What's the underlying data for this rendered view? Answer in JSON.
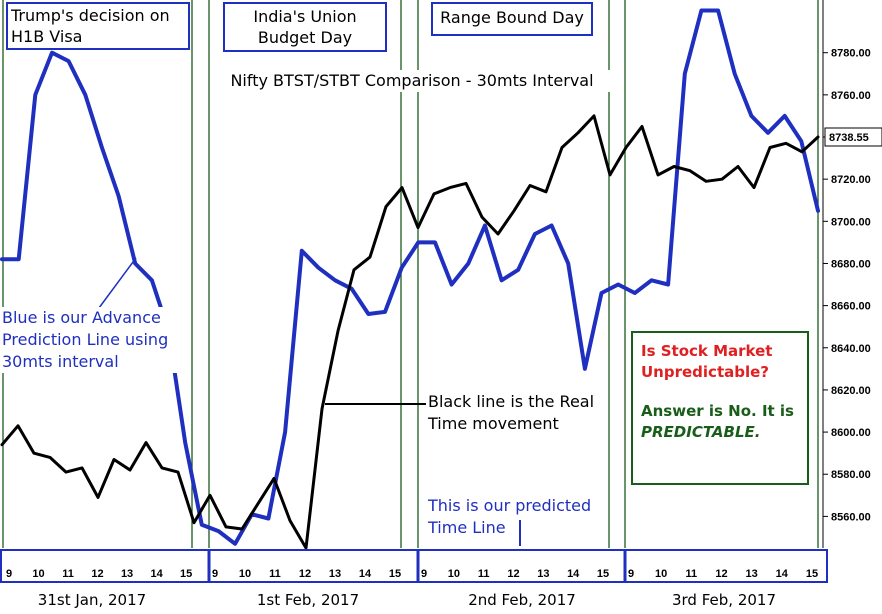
{
  "chart_data": {
    "type": "line",
    "title": "Nifty BTST/STBT Comparison - 30mts Interval",
    "ylim": [
      8545,
      8805
    ],
    "y_ticks": [
      8560,
      8580,
      8600,
      8620,
      8640,
      8660,
      8680,
      8700,
      8720,
      8740,
      8760,
      8780
    ],
    "last_price_label": "8738.55",
    "x_tick_labels": [
      "9",
      "10",
      "11",
      "12",
      "13",
      "14",
      "15",
      "9",
      "10",
      "11",
      "12",
      "13",
      "14",
      "15",
      "9",
      "10",
      "11",
      "12",
      "13",
      "14",
      "15",
      "9",
      "10",
      "11",
      "12",
      "13",
      "14",
      "15"
    ],
    "day_labels": [
      "31st Jan, 2017",
      "1st Feb, 2017",
      "2nd Feb, 2017",
      "3rd Feb, 2017"
    ],
    "series": [
      {
        "color": "#1f2fbf",
        "values": [
          8682,
          8682,
          8760,
          8780,
          8776,
          8760,
          8735,
          8712,
          8680,
          8672,
          8648,
          8595,
          8556,
          8553,
          8547,
          8561,
          8559,
          8600,
          8686,
          8678,
          8672,
          8668,
          8656,
          8657,
          8678,
          8690,
          8690,
          8670,
          8680,
          8698,
          8672,
          8677,
          8694,
          8698,
          8680,
          8630,
          8666,
          8670,
          8666,
          8672,
          8670,
          8770,
          8800,
          8800,
          8770,
          8750,
          8742,
          8750,
          8738,
          8705
        ]
      },
      {
        "color": "#000000",
        "values": [
          8594,
          8603,
          8590,
          8588,
          8581,
          8583,
          8569,
          8587,
          8582,
          8595,
          8583,
          8581,
          8557,
          8570,
          8555,
          8554,
          8566,
          8578,
          8558,
          8545,
          8611,
          8648,
          8677,
          8683,
          8707,
          8716,
          8697,
          8713,
          8716,
          8718,
          8702,
          8694,
          8705,
          8717,
          8714,
          8735,
          8742,
          8750,
          8722,
          8735,
          8745,
          8722,
          8726,
          8724,
          8719,
          8720,
          8726,
          8716,
          8735,
          8737,
          8733,
          8740
        ]
      }
    ]
  },
  "labels": {
    "trump": "Trump's decision on H1B Visa",
    "budget": "India's Union Budget Day",
    "range": "Range Bound Day",
    "blue_note": "Blue is our Advance Prediction Line using 30mts interval",
    "black_note": "Black line is the Real Time movement",
    "timeline_note": "This is our predicted Time Line",
    "question": "Is Stock Market Unpredictable?",
    "answer_prefix": "Answer is No. It is ",
    "answer_emph": "PREDICTABLE."
  },
  "colors": {
    "blue": "#1f2fbf",
    "black": "#000000",
    "green": "#1a5c1a",
    "red": "#e02020"
  }
}
